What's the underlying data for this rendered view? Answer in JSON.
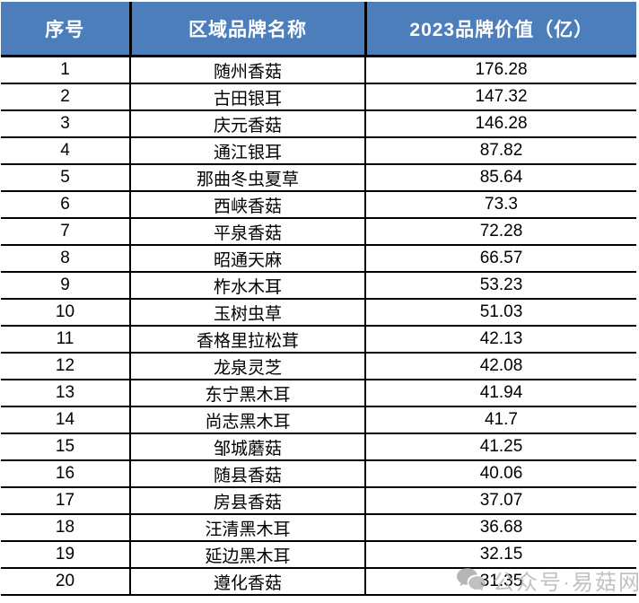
{
  "colors": {
    "header_bg": "#4d7ebc",
    "header_text": "#ffffff",
    "body_text": "#000000",
    "grid_border": "#000000",
    "watermark_gray": "#b9b9b9"
  },
  "table": {
    "columns": [
      "序号",
      "区域品牌名称",
      "2023品牌价值（亿）"
    ],
    "rows": [
      {
        "no": "1",
        "name": "随州香菇",
        "value": "176.28"
      },
      {
        "no": "2",
        "name": "古田银耳",
        "value": "147.32"
      },
      {
        "no": "3",
        "name": "庆元香菇",
        "value": "146.28"
      },
      {
        "no": "4",
        "name": "通江银耳",
        "value": "87.82"
      },
      {
        "no": "5",
        "name": "那曲冬虫夏草",
        "value": "85.64"
      },
      {
        "no": "6",
        "name": "西峡香菇",
        "value": "73.3"
      },
      {
        "no": "7",
        "name": "平泉香菇",
        "value": "72.28"
      },
      {
        "no": "8",
        "name": "昭通天麻",
        "value": "66.57"
      },
      {
        "no": "9",
        "name": "柞水木耳",
        "value": "53.23"
      },
      {
        "no": "10",
        "name": "玉树虫草",
        "value": "51.03"
      },
      {
        "no": "11",
        "name": "香格里拉松茸",
        "value": "42.13"
      },
      {
        "no": "12",
        "name": "龙泉灵芝",
        "value": "42.08"
      },
      {
        "no": "13",
        "name": "东宁黑木耳",
        "value": "41.94"
      },
      {
        "no": "14",
        "name": "尚志黑木耳",
        "value": "41.7"
      },
      {
        "no": "15",
        "name": "邹城蘑菇",
        "value": "41.25"
      },
      {
        "no": "16",
        "name": "随县香菇",
        "value": "40.06"
      },
      {
        "no": "17",
        "name": "房县香菇",
        "value": "37.07"
      },
      {
        "no": "18",
        "name": "汪清黑木耳",
        "value": "36.68"
      },
      {
        "no": "19",
        "name": "延边黑木耳",
        "value": "32.15"
      },
      {
        "no": "20",
        "name": "遵化香菇",
        "value": "31.35"
      }
    ]
  },
  "watermark": {
    "icon": "wechat-bubbles-icon",
    "text": "公众号·易菇网"
  },
  "chart_data": {
    "type": "table",
    "title": "2023品牌价值（亿）",
    "columns": [
      "序号",
      "区域品牌名称",
      "2023品牌价值（亿）"
    ],
    "categories": [
      "随州香菇",
      "古田银耳",
      "庆元香菇",
      "通江银耳",
      "那曲冬虫夏草",
      "西峡香菇",
      "平泉香菇",
      "昭通天麻",
      "柞水木耳",
      "玉树虫草",
      "香格里拉松茸",
      "龙泉灵芝",
      "东宁黑木耳",
      "尚志黑木耳",
      "邹城蘑菇",
      "随县香菇",
      "房县香菇",
      "汪清黑木耳",
      "延边黑木耳",
      "遵化香菇"
    ],
    "values": [
      176.28,
      147.32,
      146.28,
      87.82,
      85.64,
      73.3,
      72.28,
      66.57,
      53.23,
      51.03,
      42.13,
      42.08,
      41.94,
      41.7,
      41.25,
      40.06,
      37.07,
      36.68,
      32.15,
      31.35
    ],
    "value_unit": "亿",
    "sort": "descending by value"
  }
}
